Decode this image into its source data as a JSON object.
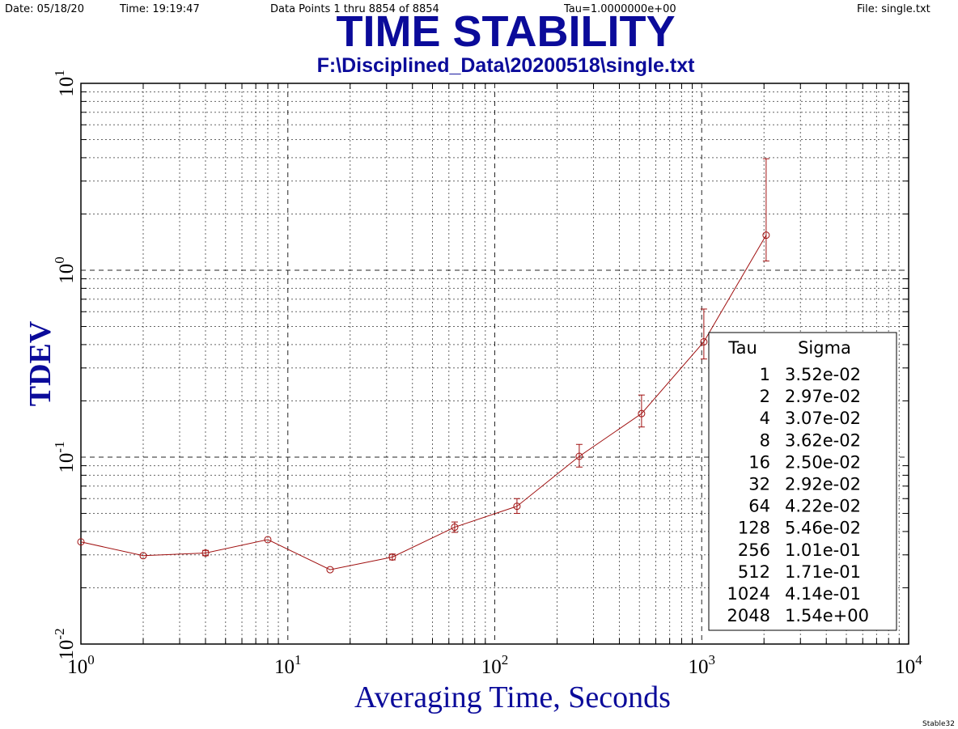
{
  "header": {
    "date": "Date: 05/18/20",
    "time": "Time: 19:19:47",
    "points": "Data Points 1 thru 8854 of 8854",
    "tau": "Tau=1.0000000e+00",
    "file": "File: single.txt"
  },
  "footer": "Stable32",
  "chart_data": {
    "type": "line",
    "title": "TIME STABILITY",
    "subtitle": "F:\\Disciplined_Data\\20200518\\single.txt",
    "xlabel": "Averaging Time, Seconds",
    "ylabel": "TDEV",
    "xscale": "log",
    "yscale": "log",
    "xlim": [
      1,
      10000
    ],
    "ylim": [
      0.01,
      10
    ],
    "grid": true,
    "x_ticks": [
      {
        "base": "10",
        "exp": "0"
      },
      {
        "base": "10",
        "exp": "1"
      },
      {
        "base": "10",
        "exp": "2"
      },
      {
        "base": "10",
        "exp": "3"
      },
      {
        "base": "10",
        "exp": "4"
      }
    ],
    "y_ticks": [
      {
        "base": "10",
        "exp": "-2"
      },
      {
        "base": "10",
        "exp": "-1"
      },
      {
        "base": "10",
        "exp": "0"
      },
      {
        "base": "10",
        "exp": "1"
      }
    ],
    "series": [
      {
        "color": "#a01010",
        "x": [
          1,
          2,
          4,
          8,
          16,
          32,
          64,
          128,
          256,
          512,
          1024,
          2048
        ],
        "y": [
          0.0352,
          0.0297,
          0.0307,
          0.0362,
          0.025,
          0.0292,
          0.0422,
          0.0546,
          0.101,
          0.171,
          0.414,
          1.54
        ],
        "err_low": [
          0.0352,
          0.0297,
          0.0297,
          0.0362,
          0.025,
          0.0282,
          0.0396,
          0.05,
          0.0885,
          0.145,
          0.335,
          1.12
        ],
        "err_high": [
          0.0352,
          0.0297,
          0.0317,
          0.0362,
          0.025,
          0.0303,
          0.045,
          0.06,
          0.117,
          0.215,
          0.62,
          3.95
        ]
      }
    ],
    "legend": {
      "placement": "bottom-right",
      "headers": [
        "Tau",
        "Sigma"
      ],
      "rows": [
        [
          "1",
          "3.52e-02"
        ],
        [
          "2",
          "2.97e-02"
        ],
        [
          "4",
          "3.07e-02"
        ],
        [
          "8",
          "3.62e-02"
        ],
        [
          "16",
          "2.50e-02"
        ],
        [
          "32",
          "2.92e-02"
        ],
        [
          "64",
          "4.22e-02"
        ],
        [
          "128",
          "5.46e-02"
        ],
        [
          "256",
          "1.01e-01"
        ],
        [
          "512",
          "1.71e-01"
        ],
        [
          "1024",
          "4.14e-01"
        ],
        [
          "2048",
          "1.54e+00"
        ]
      ]
    }
  }
}
